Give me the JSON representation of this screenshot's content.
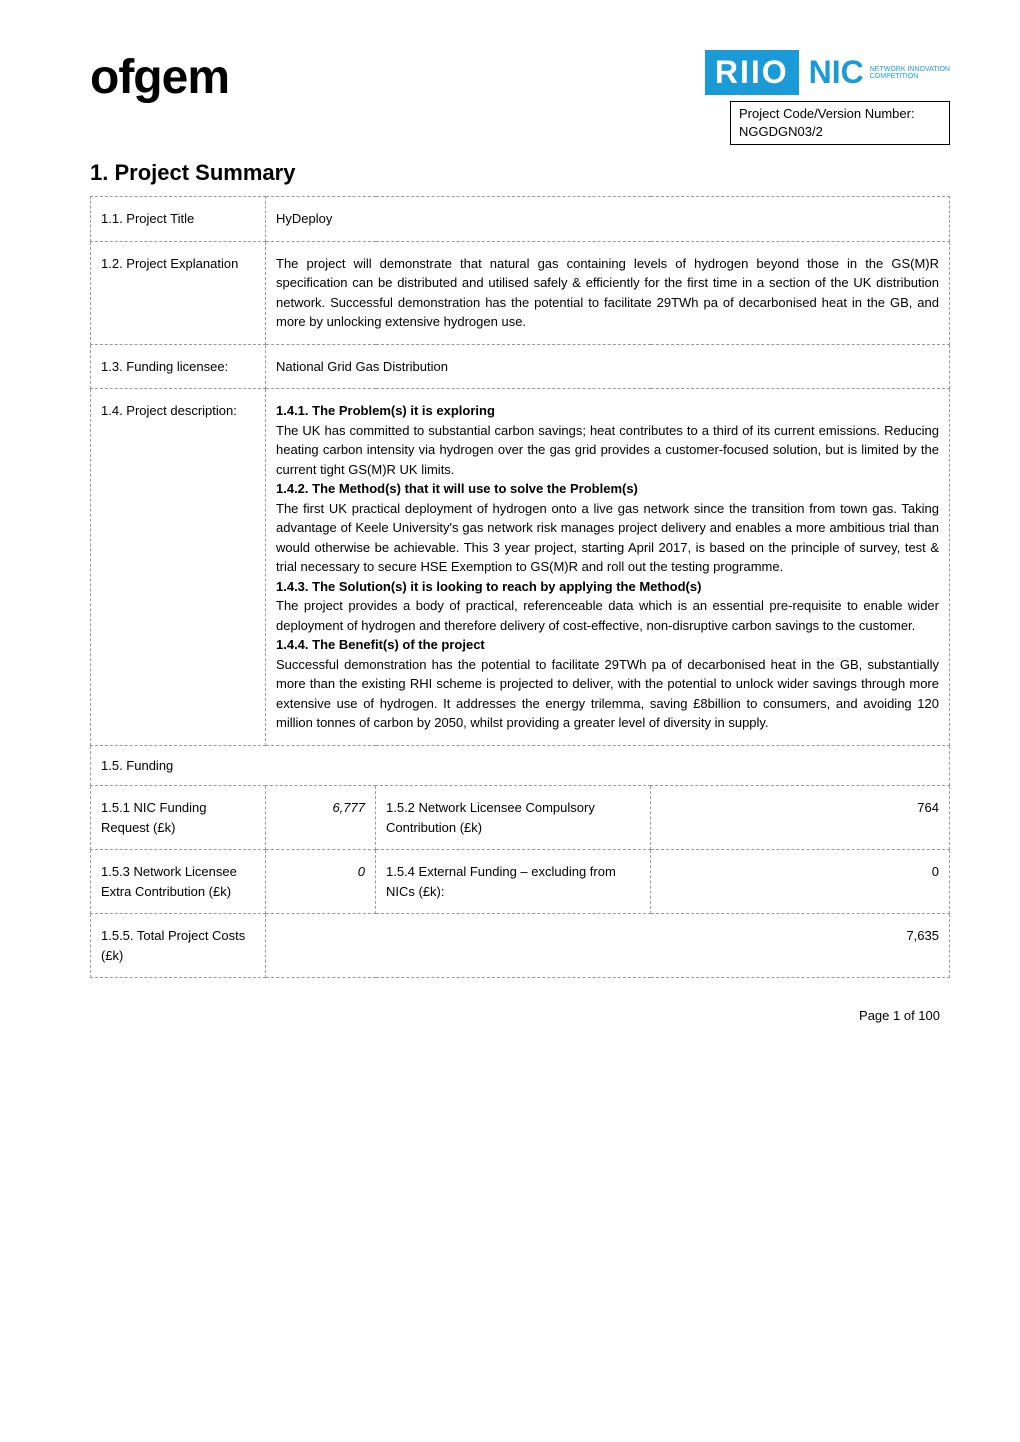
{
  "header": {
    "logo_left": "ofgem",
    "riio_text": "RIIO",
    "nic_text": "NIC",
    "nic_sub1": "NETWORK INNOVATION",
    "nic_sub2": "COMPETITION",
    "project_code_label": "Project Code/Version Number:",
    "project_code_value": "NGGDGN03/2"
  },
  "section_title": "1. Project Summary",
  "rows": {
    "r1": {
      "label": "1.1. Project Title",
      "value": "HyDeploy"
    },
    "r2": {
      "label": "1.2. Project Explanation",
      "value": "The project will demonstrate that natural gas containing levels of hydrogen beyond those in the GS(M)R specification can be distributed and utilised safely & efficiently for the first time in a section of the UK distribution network. Successful demonstration has the potential to facilitate 29TWh pa of decarbonised heat in the GB, and more by unlocking extensive hydrogen use."
    },
    "r3": {
      "label": "1.3. Funding licensee:",
      "value": "National Grid Gas Distribution"
    },
    "r4": {
      "label": "1.4. Project description:",
      "h1": "1.4.1. The Problem(s) it is exploring",
      "p1": "The UK has committed to substantial carbon savings; heat contributes to a third of its current emissions. Reducing heating carbon intensity via hydrogen over the gas grid provides a customer-focused solution, but is limited by the current tight GS(M)R UK limits.",
      "h2": "1.4.2. The Method(s) that it will use to solve the Problem(s)",
      "p2": "The first UK practical deployment of hydrogen onto a live gas network since the transition from town gas. Taking advantage of Keele University's gas network risk manages project delivery and enables a more ambitious trial than would otherwise be achievable. This 3 year project, starting April 2017, is based on the principle of survey, test & trial necessary to secure HSE Exemption to GS(M)R and roll out the testing programme.",
      "h3": "1.4.3. The Solution(s) it is looking to reach by applying the Method(s)",
      "p3": "The project provides a body of practical, referenceable data which is an essential pre-requisite to enable wider deployment of hydrogen and therefore delivery of cost-effective, non-disruptive carbon savings to the customer.",
      "h4": "1.4.4. The Benefit(s) of the project",
      "p4": "Successful demonstration has the potential to facilitate 29TWh pa of decarbonised heat in the GB, substantially more than the existing RHI scheme is projected to deliver, with the potential to unlock wider savings through more extensive use of hydrogen. It addresses the energy trilemma, saving £8billion to consumers, and avoiding 120 million tonnes of carbon by 2050, whilst providing a greater level of diversity in supply."
    },
    "r5": {
      "label": "1.5. Funding"
    }
  },
  "funding": {
    "f1_label": "1.5.1 NIC Funding Request (£k)",
    "f1_value": "6,777",
    "f2_label": "1.5.2 Network Licensee Compulsory Contribution (£k)",
    "f2_value": "764",
    "f3_label": "1.5.3 Network Licensee Extra Contribution (£k)",
    "f3_value": "0",
    "f4_label": "1.5.4 External Funding – excluding from NICs (£k):",
    "f4_value": "0",
    "f5_label": "1.5.5. Total Project Costs (£k)",
    "f5_value": "7,635"
  },
  "footer": {
    "page_text": "Page 1 of 100"
  },
  "styling": {
    "body_font": "Verdana",
    "body_fontsize_pt": 10,
    "heading_fontsize_pt": 16,
    "logo_color": "#000000",
    "riio_bg": "#1a9bd7",
    "riio_fg": "#ffffff",
    "nic_color": "#1a9bd7",
    "border_style": "dashed",
    "border_color": "#999999",
    "text_color": "#000000",
    "background_color": "#ffffff"
  }
}
